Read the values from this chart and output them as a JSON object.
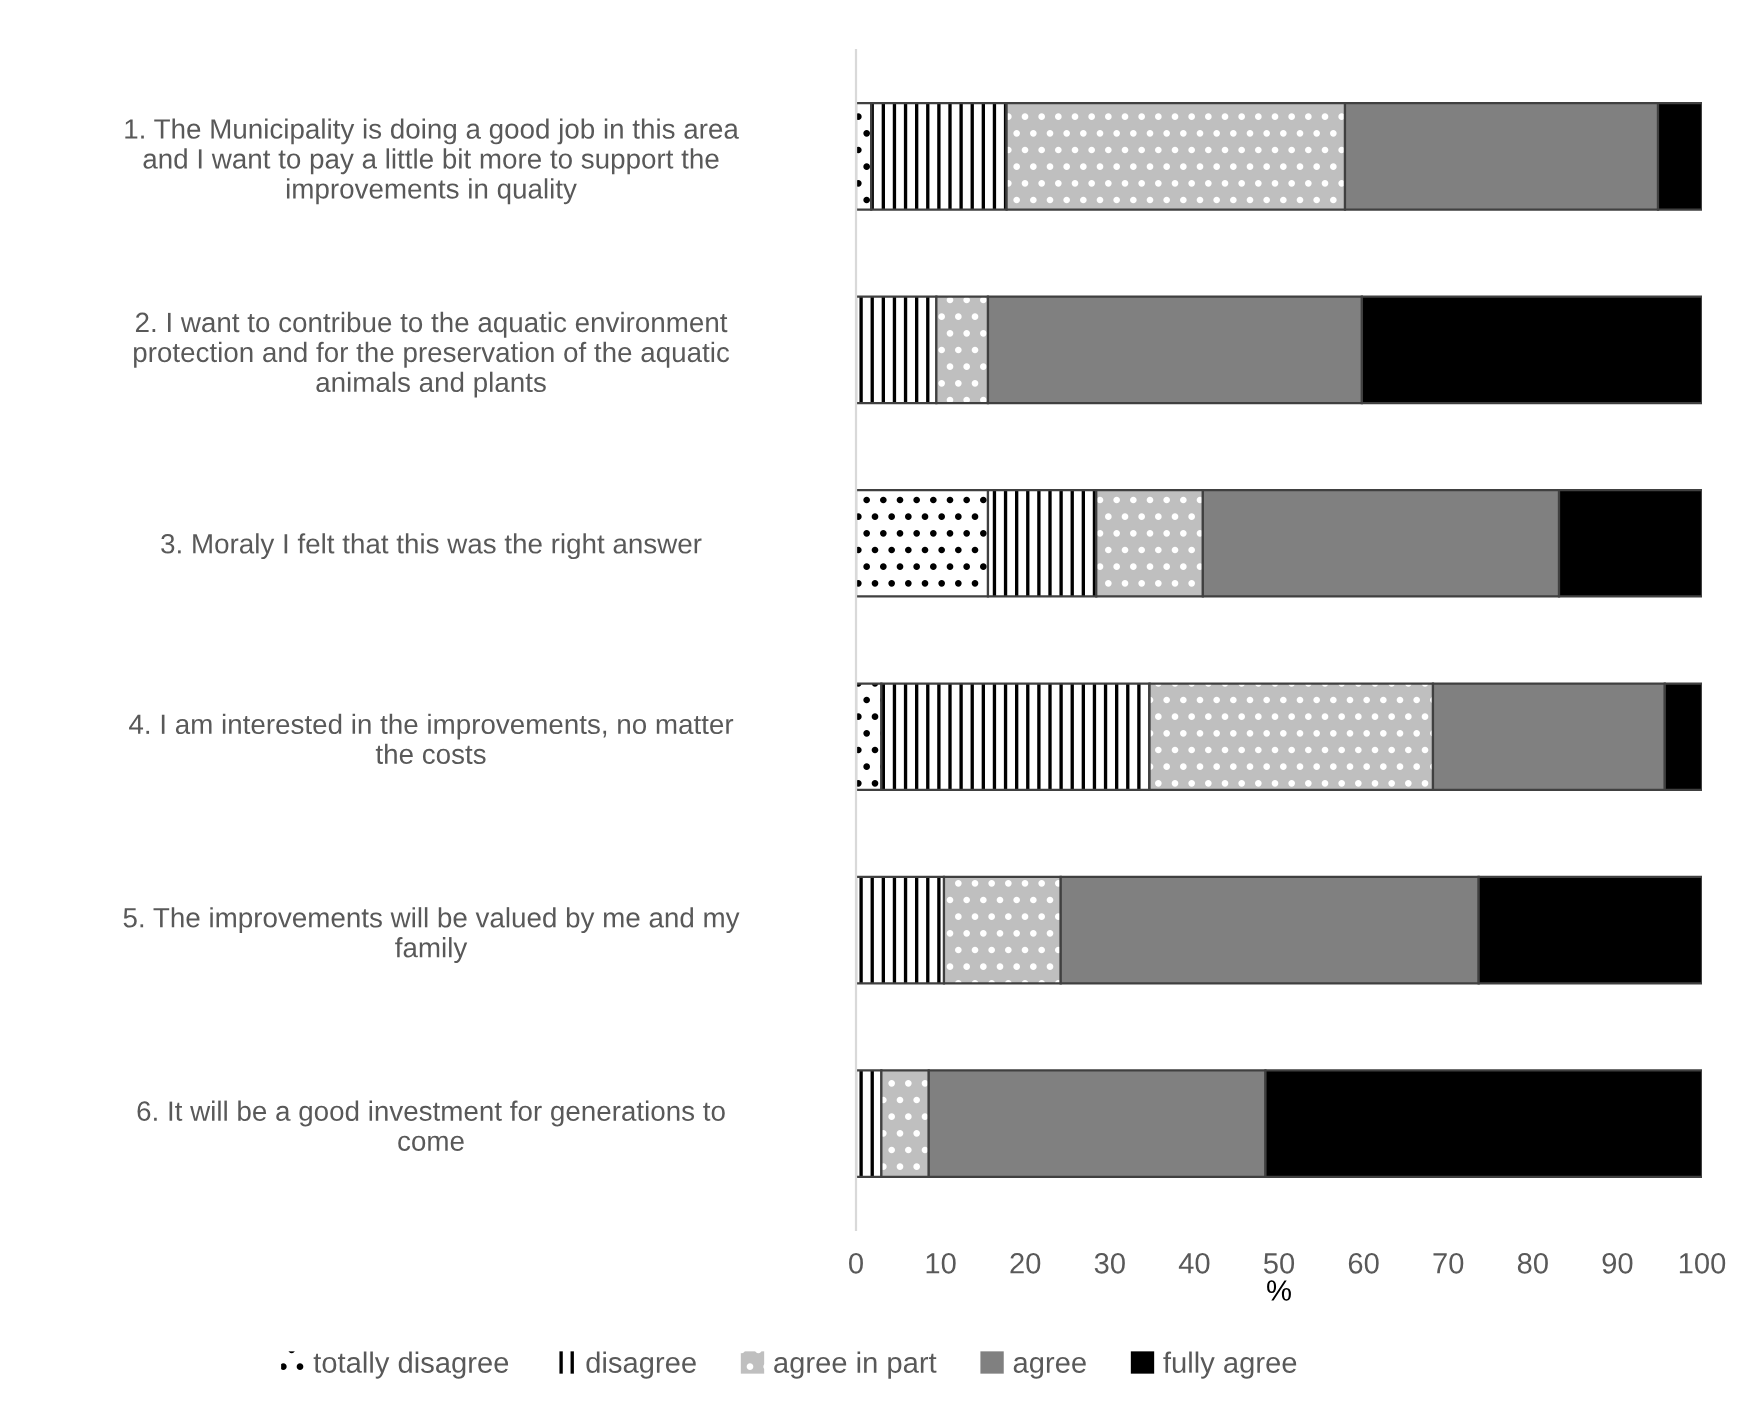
{
  "chart_data": {
    "type": "bar",
    "orientation": "horizontal",
    "stacked": true,
    "xlabel": "%",
    "categories": [
      "1. The Municipality is doing a good job in this area\nand I want to pay a little bit more to support the\nimprovements in quality",
      "2. I want to contribue to the aquatic environment\nprotection and for the preservation of the aquatic\nanimals and plants",
      "3. Moraly I felt that this was the right answer",
      "4. I am interested in the improvements, no matter\nthe costs",
      "5. The improvements will be valued by me and my\nfamily",
      "6. It will be a good investment for generations to\ncome"
    ],
    "series": [
      {
        "name": "totally disagree",
        "color": "#ffffff",
        "values": [
          1.8,
          0,
          15.6,
          3.0,
          null,
          0
        ]
      },
      {
        "name": "disagree",
        "color": "#ffffff",
        "values": [
          16.0,
          9.5,
          12.8,
          31.7,
          10.4,
          3.0
        ]
      },
      {
        "name": "agree in part",
        "color": "#bfbfbf",
        "values": [
          40.0,
          6.1,
          12.6,
          33.5,
          13.8,
          5.6
        ]
      },
      {
        "name": "agree",
        "color": "#808080",
        "values": [
          37.0,
          44.2,
          42.1,
          27.4,
          49.4,
          39.8
        ]
      },
      {
        "name": "fully agree",
        "color": "#000000",
        "values": [
          5.2,
          40.2,
          16.9,
          4.4,
          26.4,
          51.6
        ]
      }
    ],
    "xlim": [
      0,
      100
    ],
    "xticks": [
      0,
      10,
      20,
      30,
      40,
      50,
      60,
      70,
      80,
      90,
      100
    ],
    "grid": false,
    "legend": "bottom"
  }
}
